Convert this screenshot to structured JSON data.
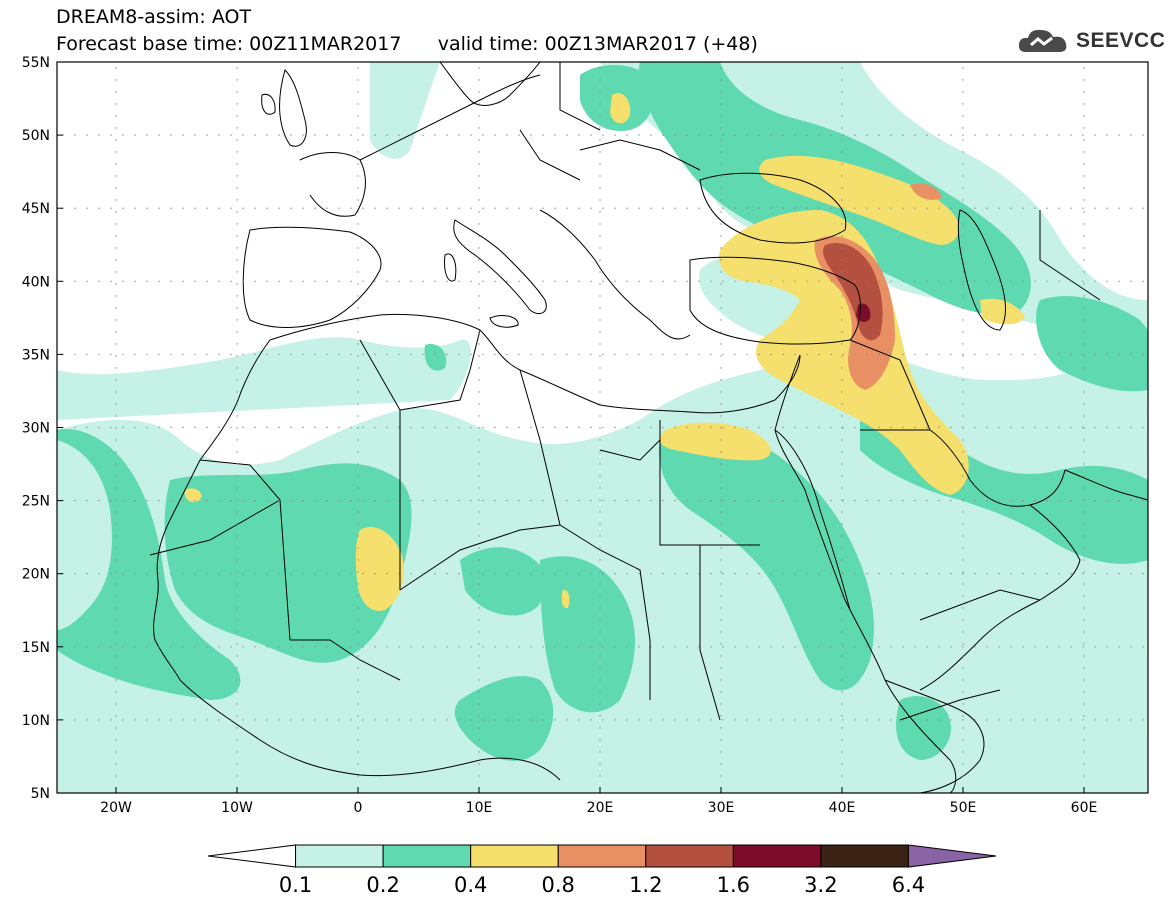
{
  "title": "DREAM8-assim: AOT",
  "base_time_label": "Forecast base time: 00Z11MAR2017",
  "valid_time_label": "valid time: 00Z13MAR2017 (+48)",
  "logo_text": "SEEVCCC",
  "lat_labels": [
    "55N",
    "50N",
    "45N",
    "40N",
    "35N",
    "30N",
    "25N",
    "20N",
    "15N",
    "10N",
    "5N"
  ],
  "lon_labels": [
    "20W",
    "10W",
    "0",
    "10E",
    "20E",
    "30E",
    "40E",
    "50E",
    "60E"
  ],
  "colorbar": {
    "labels": [
      "0.1",
      "0.2",
      "0.4",
      "0.8",
      "1.2",
      "1.6",
      "3.2",
      "6.4"
    ],
    "colors": [
      "#ffffff",
      "#c6f1e6",
      "#5fd9b0",
      "#f5e06e",
      "#e88f63",
      "#b3503f",
      "#7d0b2a",
      "#3a2314",
      "#8a63a4"
    ]
  },
  "colors": {
    "c01": "#c6f1e6",
    "c02": "#5fd9b0",
    "c04": "#f5e06e",
    "c08": "#e88f63",
    "c12": "#b3503f",
    "c16": "#7d0b2a"
  }
}
